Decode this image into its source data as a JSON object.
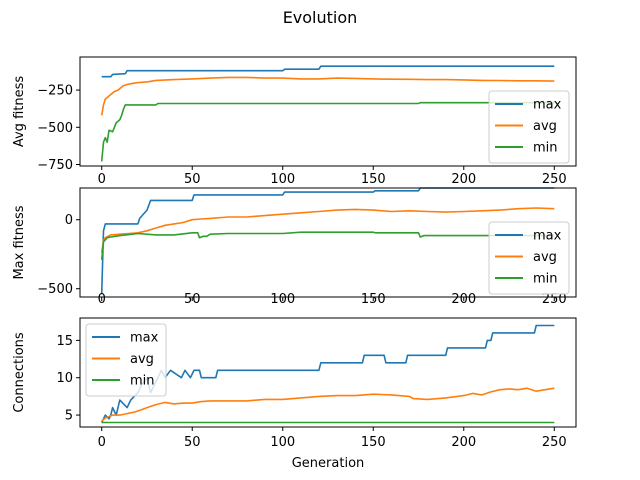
{
  "chart_data": {
    "type": "line",
    "title": "Evolution",
    "xlabel": "Generation",
    "xlim": [
      -12,
      262
    ],
    "xticks": [
      0,
      50,
      100,
      150,
      200,
      250
    ],
    "colors": {
      "max": "#1f77b4",
      "avg": "#ff7f0e",
      "min": "#2ca02c"
    },
    "legend_labels": [
      "max",
      "avg",
      "min"
    ],
    "panels": [
      {
        "ylabel": "Avg fitness",
        "ylim": [
          -760,
          -28
        ],
        "yticks": [
          -250,
          -500,
          -750
        ],
        "ytick_labels": [
          "−250",
          "−500",
          "−750"
        ],
        "legend": "lower right",
        "series": [
          {
            "name": "max",
            "points": [
              [
                0,
                -160
              ],
              [
                5,
                -160
              ],
              [
                6,
                -145
              ],
              [
                13,
                -140
              ],
              [
                14,
                -120
              ],
              [
                100,
                -120
              ],
              [
                101,
                -110
              ],
              [
                120,
                -110
              ],
              [
                121,
                -90
              ],
              [
                250,
                -90
              ]
            ]
          },
          {
            "name": "avg",
            "points": [
              [
                0,
                -420
              ],
              [
                1,
                -350
              ],
              [
                2,
                -310
              ],
              [
                3,
                -300
              ],
              [
                5,
                -280
              ],
              [
                7,
                -260
              ],
              [
                9,
                -250
              ],
              [
                12,
                -220
              ],
              [
                15,
                -210
              ],
              [
                20,
                -200
              ],
              [
                25,
                -195
              ],
              [
                30,
                -185
              ],
              [
                40,
                -180
              ],
              [
                50,
                -175
              ],
              [
                60,
                -170
              ],
              [
                70,
                -165
              ],
              [
                80,
                -165
              ],
              [
                90,
                -170
              ],
              [
                100,
                -170
              ],
              [
                110,
                -175
              ],
              [
                120,
                -175
              ],
              [
                130,
                -170
              ],
              [
                140,
                -172
              ],
              [
                150,
                -175
              ],
              [
                160,
                -177
              ],
              [
                170,
                -178
              ],
              [
                180,
                -180
              ],
              [
                190,
                -180
              ],
              [
                200,
                -182
              ],
              [
                210,
                -185
              ],
              [
                220,
                -186
              ],
              [
                230,
                -188
              ],
              [
                240,
                -188
              ],
              [
                250,
                -190
              ]
            ]
          },
          {
            "name": "min",
            "points": [
              [
                0,
                -730
              ],
              [
                1,
                -600
              ],
              [
                2,
                -570
              ],
              [
                3,
                -600
              ],
              [
                4,
                -520
              ],
              [
                6,
                -530
              ],
              [
                8,
                -470
              ],
              [
                10,
                -450
              ],
              [
                11,
                -420
              ],
              [
                12,
                -380
              ],
              [
                13,
                -350
              ],
              [
                30,
                -350
              ],
              [
                31,
                -340
              ],
              [
                175,
                -340
              ],
              [
                176,
                -335
              ],
              [
                250,
                -335
              ]
            ]
          }
        ]
      },
      {
        "ylabel": "Max fitness",
        "ylim": [
          -560,
          230
        ],
        "yticks": [
          0,
          -500
        ],
        "ytick_labels": [
          "0",
          "−500"
        ],
        "legend": "lower right",
        "series": [
          {
            "name": "max",
            "points": [
              [
                0,
                -540
              ],
              [
                1,
                -80
              ],
              [
                2,
                -30
              ],
              [
                20,
                -30
              ],
              [
                21,
                10
              ],
              [
                25,
                70
              ],
              [
                27,
                140
              ],
              [
                49,
                140
              ],
              [
                50,
                140
              ],
              [
                51,
                180
              ],
              [
                54,
                180
              ],
              [
                100,
                180
              ],
              [
                101,
                200
              ],
              [
                150,
                200
              ],
              [
                151,
                210
              ],
              [
                175,
                210
              ],
              [
                176,
                230
              ],
              [
                250,
                230
              ]
            ]
          },
          {
            "name": "avg",
            "points": [
              [
                0,
                -240
              ],
              [
                1,
                -150
              ],
              [
                2,
                -130
              ],
              [
                5,
                -110
              ],
              [
                10,
                -105
              ],
              [
                15,
                -100
              ],
              [
                20,
                -95
              ],
              [
                25,
                -80
              ],
              [
                30,
                -60
              ],
              [
                35,
                -40
              ],
              [
                40,
                -30
              ],
              [
                45,
                -20
              ],
              [
                50,
                0
              ],
              [
                55,
                5
              ],
              [
                60,
                10
              ],
              [
                70,
                20
              ],
              [
                80,
                20
              ],
              [
                90,
                30
              ],
              [
                100,
                40
              ],
              [
                110,
                50
              ],
              [
                120,
                60
              ],
              [
                130,
                70
              ],
              [
                140,
                75
              ],
              [
                150,
                70
              ],
              [
                160,
                60
              ],
              [
                170,
                65
              ],
              [
                180,
                60
              ],
              [
                190,
                55
              ],
              [
                200,
                60
              ],
              [
                210,
                65
              ],
              [
                220,
                70
              ],
              [
                230,
                80
              ],
              [
                240,
                85
              ],
              [
                250,
                80
              ]
            ]
          },
          {
            "name": "min",
            "points": [
              [
                0,
                -290
              ],
              [
                1,
                -160
              ],
              [
                3,
                -130
              ],
              [
                5,
                -125
              ],
              [
                10,
                -115
              ],
              [
                20,
                -100
              ],
              [
                30,
                -110
              ],
              [
                40,
                -110
              ],
              [
                50,
                -95
              ],
              [
                53,
                -95
              ],
              [
                54,
                -130
              ],
              [
                56,
                -120
              ],
              [
                58,
                -120
              ],
              [
                60,
                -105
              ],
              [
                70,
                -100
              ],
              [
                100,
                -100
              ],
              [
                110,
                -90
              ],
              [
                150,
                -90
              ],
              [
                151,
                -95
              ],
              [
                175,
                -95
              ],
              [
                176,
                -125
              ],
              [
                178,
                -115
              ],
              [
                250,
                -115
              ]
            ]
          }
        ]
      },
      {
        "ylabel": "Connections",
        "ylim": [
          3.4,
          18
        ],
        "yticks": [
          5,
          10,
          15
        ],
        "ytick_labels": [
          "5",
          "10",
          "15"
        ],
        "legend": "upper left",
        "series": [
          {
            "name": "max",
            "points": [
              [
                0,
                4
              ],
              [
                1,
                4.5
              ],
              [
                2,
                5
              ],
              [
                4,
                4.5
              ],
              [
                5,
                5
              ],
              [
                6,
                6
              ],
              [
                8,
                5
              ],
              [
                10,
                7
              ],
              [
                14,
                6
              ],
              [
                16,
                7
              ],
              [
                20,
                8
              ],
              [
                22,
                9
              ],
              [
                25,
                10
              ],
              [
                27,
                8
              ],
              [
                29,
                9
              ],
              [
                31,
                10
              ],
              [
                33,
                11
              ],
              [
                35,
                10
              ],
              [
                38,
                11
              ],
              [
                44,
                10
              ],
              [
                46,
                11
              ],
              [
                49,
                10
              ],
              [
                51,
                11
              ],
              [
                54,
                11
              ],
              [
                55,
                10
              ],
              [
                63,
                10
              ],
              [
                64,
                11
              ],
              [
                120,
                11
              ],
              [
                121,
                12
              ],
              [
                144,
                12
              ],
              [
                145,
                13
              ],
              [
                156,
                13
              ],
              [
                157,
                12
              ],
              [
                168,
                12
              ],
              [
                169,
                13
              ],
              [
                190,
                13
              ],
              [
                191,
                14
              ],
              [
                212,
                14
              ],
              [
                213,
                15
              ],
              [
                215,
                15
              ],
              [
                216,
                16
              ],
              [
                239,
                16
              ],
              [
                240,
                17
              ],
              [
                250,
                17
              ]
            ]
          },
          {
            "name": "avg",
            "points": [
              [
                0,
                4.2
              ],
              [
                2,
                4.6
              ],
              [
                4,
                4.8
              ],
              [
                6,
                5.0
              ],
              [
                10,
                5.0
              ],
              [
                14,
                5.2
              ],
              [
                18,
                5.4
              ],
              [
                22,
                5.7
              ],
              [
                25,
                6.0
              ],
              [
                30,
                6.4
              ],
              [
                35,
                6.7
              ],
              [
                40,
                6.5
              ],
              [
                45,
                6.6
              ],
              [
                50,
                6.6
              ],
              [
                55,
                6.8
              ],
              [
                60,
                6.9
              ],
              [
                70,
                6.9
              ],
              [
                80,
                6.9
              ],
              [
                90,
                7.1
              ],
              [
                100,
                7.1
              ],
              [
                110,
                7.3
              ],
              [
                120,
                7.5
              ],
              [
                130,
                7.6
              ],
              [
                140,
                7.6
              ],
              [
                150,
                7.8
              ],
              [
                160,
                7.7
              ],
              [
                170,
                7.5
              ],
              [
                172,
                7.2
              ],
              [
                180,
                7.1
              ],
              [
                190,
                7.3
              ],
              [
                200,
                7.6
              ],
              [
                205,
                7.9
              ],
              [
                210,
                7.7
              ],
              [
                215,
                8.1
              ],
              [
                220,
                8.4
              ],
              [
                225,
                8.5
              ],
              [
                230,
                8.4
              ],
              [
                235,
                8.6
              ],
              [
                240,
                8.2
              ],
              [
                245,
                8.4
              ],
              [
                250,
                8.6
              ]
            ]
          },
          {
            "name": "min",
            "points": [
              [
                0,
                4
              ],
              [
                250,
                4
              ]
            ]
          }
        ]
      }
    ]
  }
}
